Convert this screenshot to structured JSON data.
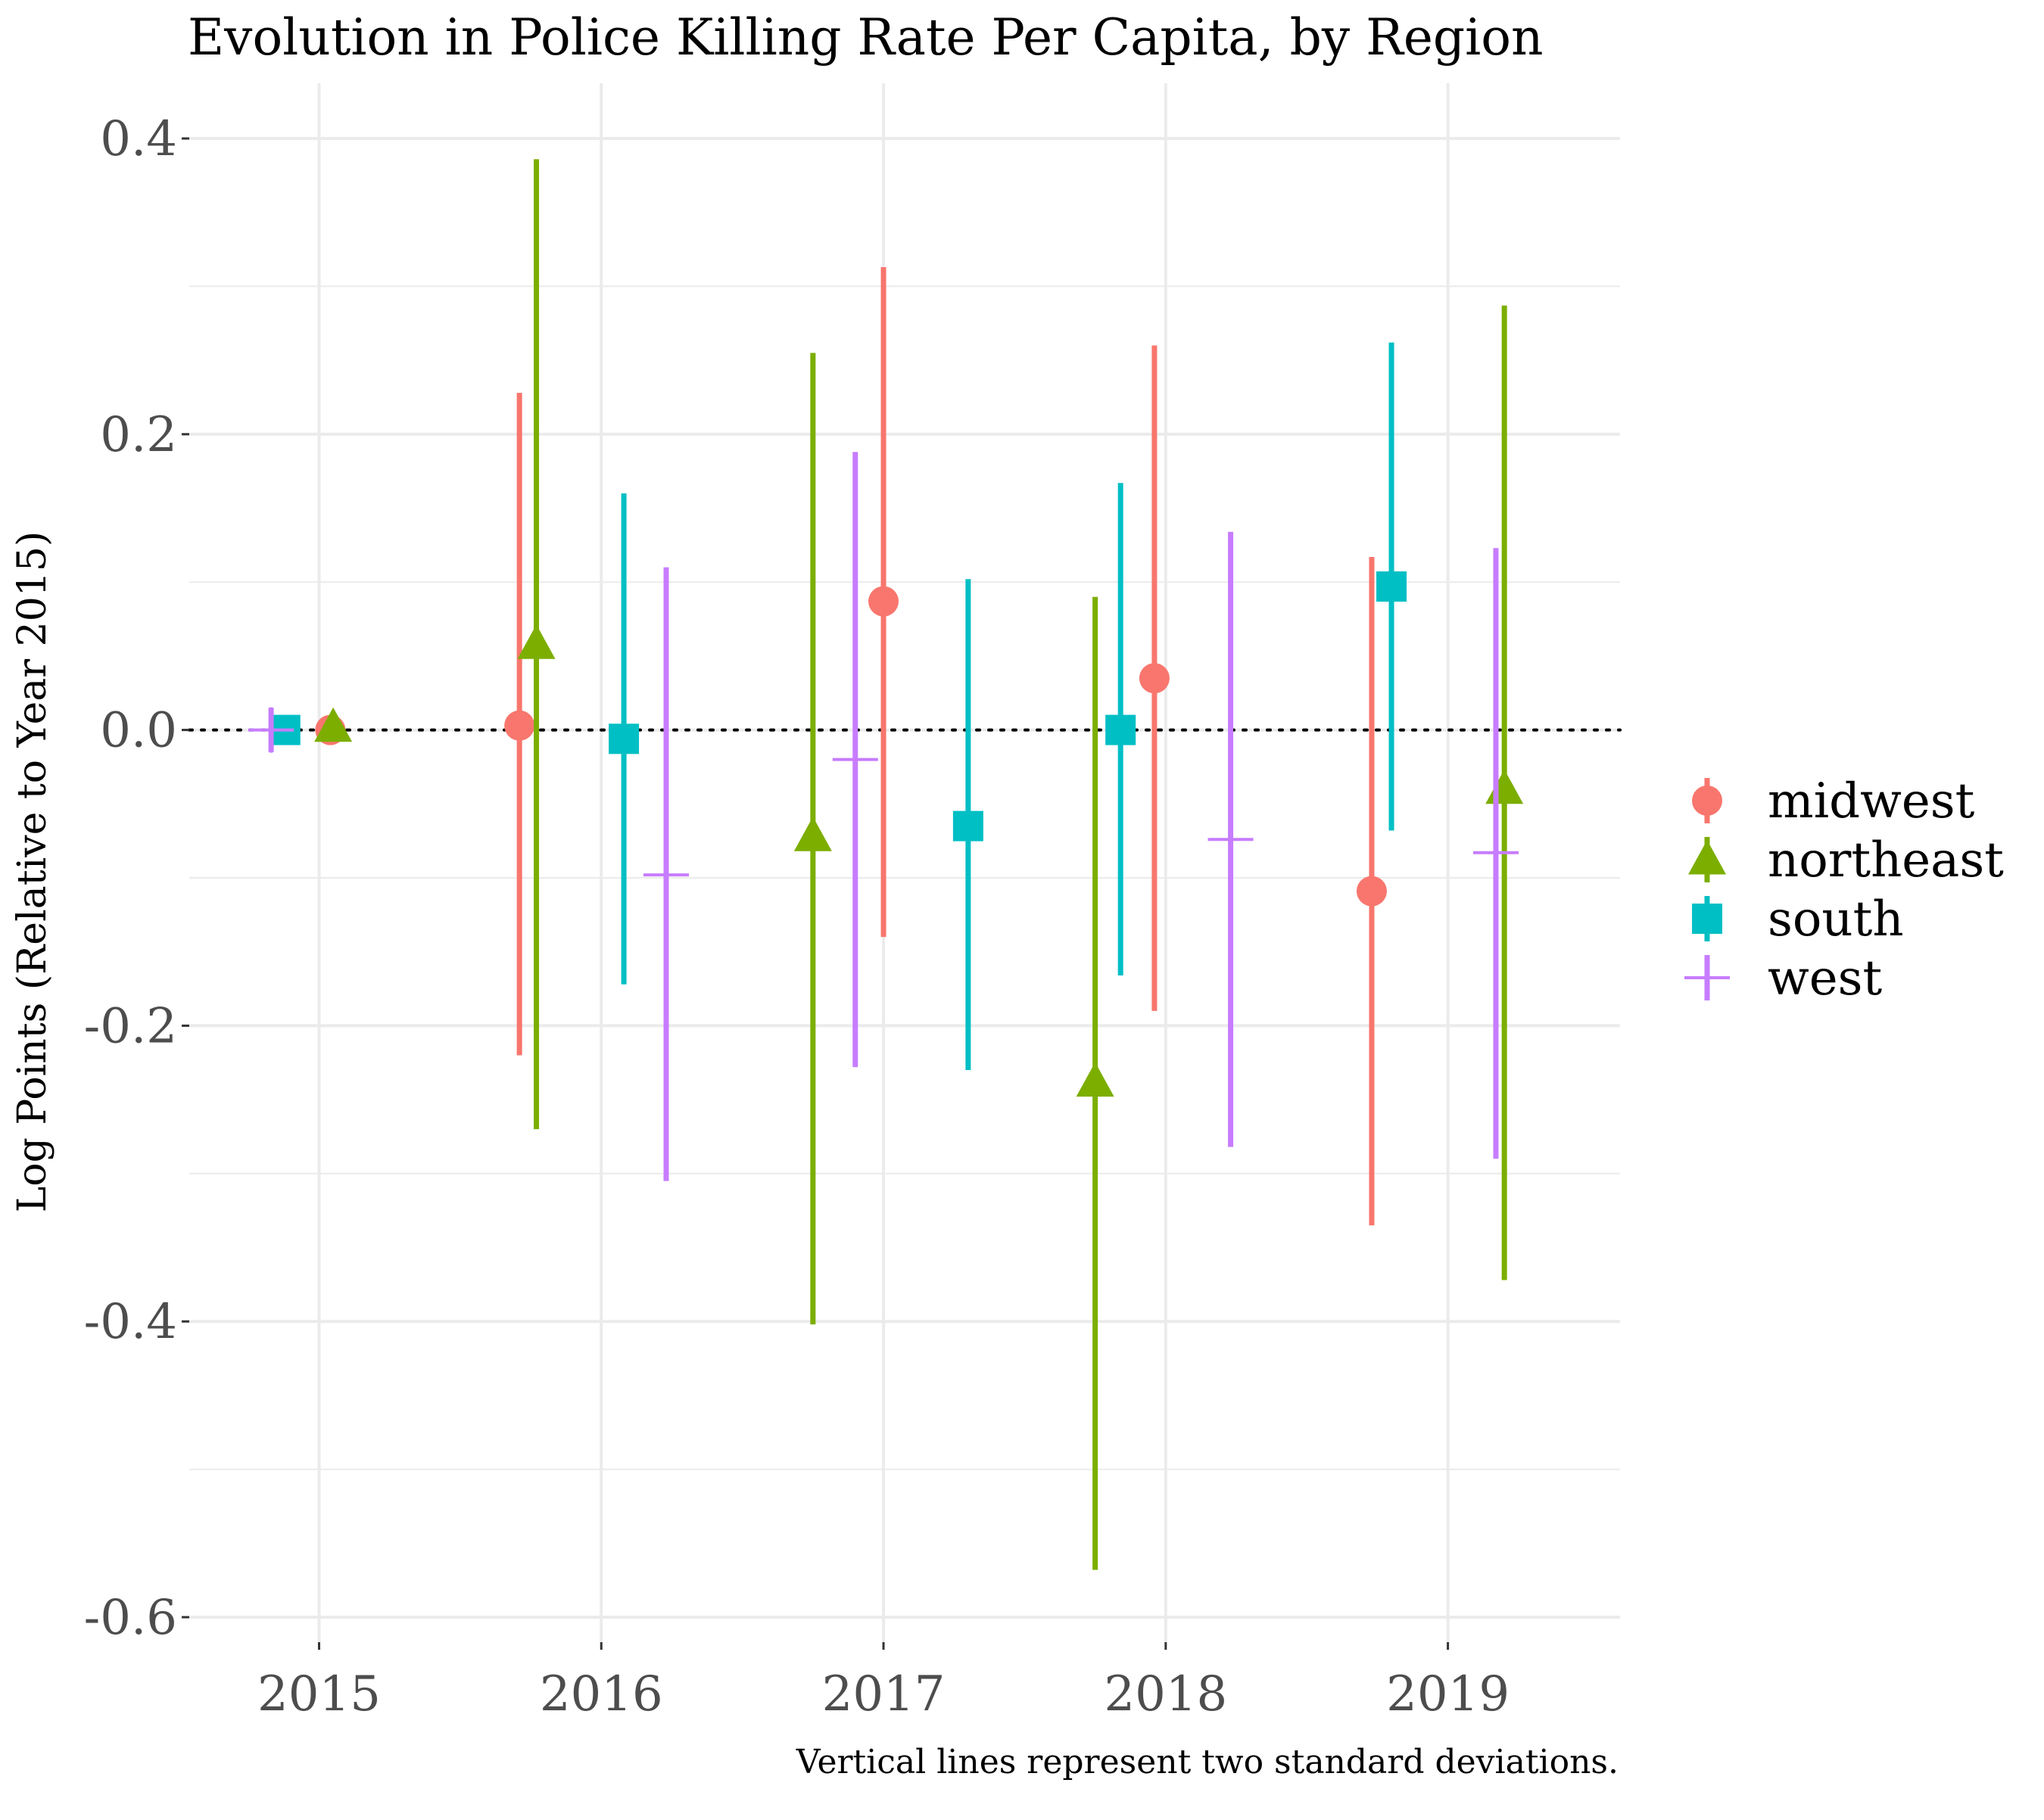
{
  "chart_data": {
    "type": "scatter",
    "title": "Evolution in Police Killing Rate Per Capita, by Region",
    "xlabel": "",
    "ylabel": "Log Points (Relative to Year 2015)",
    "caption": "Vertical lines represent two standard deviations.",
    "x_ticks": [
      "2015",
      "2016",
      "2017",
      "2018",
      "2019"
    ],
    "y_ticks": [
      "0.4",
      "0.2",
      "0.0",
      "-0.2",
      "-0.4",
      "-0.6"
    ],
    "ylim": [
      -0.6,
      0.4
    ],
    "grid": true,
    "reference_line": 0.0,
    "legend_position": "right",
    "error_bars": "two standard deviations",
    "series": [
      {
        "name": "midwest",
        "color": "#F8766D",
        "marker": "circle",
        "points": [
          {
            "x": 2015.04,
            "y": 0.0,
            "lo": 0.0,
            "hi": 0.0
          },
          {
            "x": 2015.71,
            "y": 0.003,
            "lo": -0.22,
            "hi": 0.228
          },
          {
            "x": 2017.0,
            "y": 0.087,
            "lo": -0.14,
            "hi": 0.313
          },
          {
            "x": 2017.96,
            "y": 0.035,
            "lo": -0.19,
            "hi": 0.26
          },
          {
            "x": 2018.73,
            "y": -0.109,
            "lo": -0.335,
            "hi": 0.117
          }
        ]
      },
      {
        "name": "northeast",
        "color": "#7CAE00",
        "marker": "triangle",
        "points": [
          {
            "x": 2015.05,
            "y": 0.002,
            "lo": 0.002,
            "hi": 0.002
          },
          {
            "x": 2015.77,
            "y": 0.058,
            "lo": -0.27,
            "hi": 0.386
          },
          {
            "x": 2016.75,
            "y": -0.072,
            "lo": -0.402,
            "hi": 0.255
          },
          {
            "x": 2017.75,
            "y": -0.238,
            "lo": -0.568,
            "hi": 0.09
          },
          {
            "x": 2019.2,
            "y": -0.04,
            "lo": -0.372,
            "hi": 0.287
          }
        ]
      },
      {
        "name": "south",
        "color": "#00BFC4",
        "marker": "square",
        "points": [
          {
            "x": 2014.88,
            "y": 0.0,
            "lo": 0.0,
            "hi": 0.0
          },
          {
            "x": 2016.08,
            "y": -0.006,
            "lo": -0.172,
            "hi": 0.16
          },
          {
            "x": 2017.3,
            "y": -0.065,
            "lo": -0.23,
            "hi": 0.102
          },
          {
            "x": 2017.84,
            "y": 0.0,
            "lo": -0.166,
            "hi": 0.167
          },
          {
            "x": 2018.8,
            "y": 0.097,
            "lo": -0.068,
            "hi": 0.262
          }
        ]
      },
      {
        "name": "west",
        "color": "#C77CFF",
        "marker": "cross",
        "points": [
          {
            "x": 2014.83,
            "y": 0.0,
            "lo": -0.015,
            "hi": 0.015
          },
          {
            "x": 2016.23,
            "y": -0.098,
            "lo": -0.305,
            "hi": 0.11
          },
          {
            "x": 2016.9,
            "y": -0.02,
            "lo": -0.228,
            "hi": 0.188
          },
          {
            "x": 2018.23,
            "y": -0.074,
            "lo": -0.282,
            "hi": 0.134
          },
          {
            "x": 2019.17,
            "y": -0.083,
            "lo": -0.29,
            "hi": 0.123
          }
        ]
      }
    ]
  }
}
